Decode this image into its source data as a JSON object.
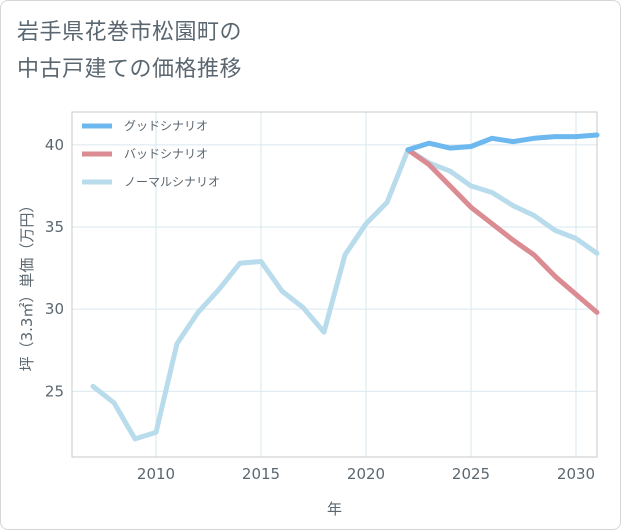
{
  "chart_data": {
    "type": "line",
    "title": [
      "岩手県花巻市松園町の",
      "中古戸建ての価格推移"
    ],
    "xlabel": "年",
    "ylabel": "坪（3.3㎡）単価（万円）",
    "xlim": [
      2006.0,
      2031.0
    ],
    "ylim": [
      21.0,
      42.0
    ],
    "x_ticks": [
      2010,
      2015,
      2020,
      2025,
      2030
    ],
    "y_ticks": [
      25,
      30,
      35,
      40
    ],
    "grid": true,
    "legend_position": "top-left",
    "series": [
      {
        "name": "グッドシナリオ",
        "color": "#6db8ee",
        "x": [
          2022,
          2023,
          2024,
          2025,
          2026,
          2027,
          2028,
          2029,
          2030,
          2031
        ],
        "y": [
          39.7,
          40.1,
          39.8,
          39.9,
          40.4,
          40.2,
          40.4,
          40.5,
          40.5,
          40.6
        ]
      },
      {
        "name": "バッドシナリオ",
        "color": "#db8b92",
        "x": [
          2022,
          2023,
          2024,
          2025,
          2026,
          2027,
          2028,
          2029,
          2030,
          2031
        ],
        "y": [
          39.7,
          38.8,
          37.5,
          36.2,
          35.2,
          34.2,
          33.3,
          32.0,
          30.9,
          29.8
        ]
      },
      {
        "name": "ノーマルシナリオ",
        "color": "#b9dcec",
        "x": [
          2007,
          2008,
          2009,
          2010,
          2011,
          2012,
          2013,
          2014,
          2015,
          2016,
          2017,
          2018,
          2019,
          2020,
          2021,
          2022,
          2023,
          2024,
          2025,
          2026,
          2027,
          2028,
          2029,
          2030,
          2031
        ],
        "y": [
          25.3,
          24.3,
          22.1,
          22.5,
          27.9,
          29.8,
          31.2,
          32.8,
          32.9,
          31.1,
          30.1,
          28.6,
          33.3,
          35.2,
          36.5,
          39.7,
          38.9,
          38.4,
          37.5,
          37.1,
          36.3,
          35.7,
          34.8,
          34.3,
          33.4
        ]
      }
    ]
  }
}
